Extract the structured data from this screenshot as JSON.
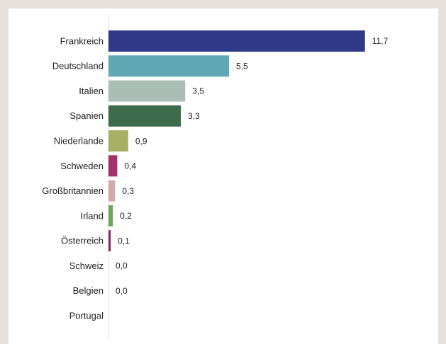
{
  "chart_data": {
    "type": "bar",
    "orientation": "horizontal",
    "categories": [
      "Frankreich",
      "Deutschland",
      "Italien",
      "Spanien",
      "Niederlande",
      "Schweden",
      "Großbritannien",
      "Irland",
      "Österreich",
      "Schweiz",
      "Belgien",
      "Portugal"
    ],
    "values": [
      11.7,
      5.5,
      3.5,
      3.3,
      0.9,
      0.4,
      0.3,
      0.2,
      0.1,
      0.0,
      0.0,
      null
    ],
    "value_labels": [
      "11,7",
      "5,5",
      "3,5",
      "3,3",
      "0,9",
      "0,4",
      "0,3",
      "0,2",
      "0,1",
      "0,0",
      "0,0",
      null
    ],
    "colors": [
      "#2e3a87",
      "#5fa8b6",
      "#abbeb6",
      "#3d6b4b",
      "#a5b065",
      "#a3306b",
      "#d5a9ac",
      "#6aa85b",
      "#7b2d5b",
      "#bbbbbb",
      "#bbbbbb",
      "#bbbbbb"
    ],
    "xlim": [
      0,
      12
    ]
  }
}
